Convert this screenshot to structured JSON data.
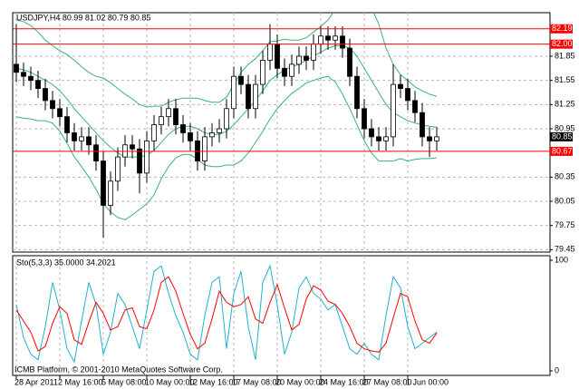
{
  "chart_data": [
    {
      "type": "candlestick",
      "title": "USDJPY,H4  80.99 81.02 80.79 80.85",
      "footer": "ICMB Platform, © 2001-2010 MetaQuotes Software Corp.",
      "categories": [
        "28 Apr 2011",
        null,
        null,
        null,
        null,
        null,
        "2 May 16:00",
        null,
        null,
        null,
        null,
        null,
        "5 May 08:00",
        null,
        null,
        null,
        null,
        null,
        "10 May 00:00",
        null,
        null,
        null,
        null,
        null,
        "12 May 16:00",
        null,
        null,
        null,
        null,
        null,
        "17 May 08:00",
        null,
        null,
        null,
        null,
        null,
        "20 May 00:00",
        null,
        null,
        null,
        null,
        null,
        "24 May 16:00",
        null,
        null,
        null,
        null,
        null,
        "27 May 08:00",
        null,
        null,
        null,
        null,
        null,
        "1 Jun 00:00",
        null,
        null,
        null,
        null
      ],
      "open": [
        81.75,
        81.65,
        81.6,
        81.55,
        81.45,
        81.3,
        81.2,
        81.1,
        80.9,
        80.8,
        80.85,
        80.75,
        80.55,
        80.0,
        80.3,
        80.6,
        80.75,
        80.7,
        80.4,
        80.8,
        81.0,
        81.1,
        81.2,
        81.0,
        80.9,
        80.8,
        80.55,
        80.85,
        80.9,
        80.95,
        81.2,
        81.6,
        81.5,
        81.2,
        81.5,
        81.8,
        82.0,
        81.7,
        81.6,
        81.75,
        81.85,
        81.8,
        82.0,
        82.1,
        82.05,
        82.1,
        81.95,
        81.6,
        81.2,
        80.95,
        80.85,
        80.8,
        80.85,
        81.5,
        81.45,
        81.3,
        81.15,
        80.85,
        80.8
      ],
      "high": [
        82.25,
        81.77,
        81.72,
        81.67,
        81.57,
        81.42,
        81.32,
        81.22,
        81.02,
        80.97,
        80.97,
        80.87,
        80.67,
        80.42,
        80.72,
        80.87,
        80.87,
        80.82,
        80.92,
        81.12,
        81.22,
        81.32,
        81.32,
        81.12,
        81.02,
        80.92,
        80.97,
        81.02,
        81.07,
        81.32,
        81.72,
        81.72,
        81.62,
        81.62,
        81.92,
        82.25,
        82.12,
        81.82,
        81.87,
        81.97,
        81.97,
        82.12,
        82.22,
        82.22,
        82.22,
        82.22,
        82.07,
        81.72,
        81.32,
        81.07,
        80.97,
        80.97,
        81.75,
        81.62,
        81.57,
        81.42,
        81.27,
        80.97,
        80.97
      ],
      "low": [
        81.53,
        81.48,
        81.43,
        81.33,
        81.18,
        81.08,
        80.98,
        80.78,
        80.68,
        80.68,
        80.63,
        80.43,
        79.6,
        79.88,
        80.18,
        80.48,
        80.58,
        80.15,
        80.28,
        80.68,
        80.88,
        80.98,
        80.88,
        80.78,
        80.68,
        80.43,
        80.43,
        80.73,
        80.78,
        80.83,
        81.08,
        81.38,
        81.08,
        81.08,
        81.38,
        81.68,
        81.58,
        81.48,
        81.48,
        81.63,
        81.68,
        81.68,
        81.88,
        81.93,
        81.93,
        81.83,
        81.48,
        81.08,
        80.83,
        80.73,
        80.68,
        80.68,
        80.73,
        81.33,
        81.18,
        81.03,
        80.73,
        80.6,
        80.68
      ],
      "close": [
        81.65,
        81.6,
        81.55,
        81.45,
        81.3,
        81.2,
        81.1,
        80.9,
        80.8,
        80.85,
        80.75,
        80.55,
        80.0,
        80.3,
        80.6,
        80.75,
        80.7,
        80.4,
        80.8,
        81.0,
        81.1,
        81.2,
        81.0,
        80.9,
        80.8,
        80.55,
        80.85,
        80.9,
        80.95,
        81.2,
        81.6,
        81.5,
        81.2,
        81.5,
        81.8,
        82.0,
        81.7,
        81.6,
        81.75,
        81.85,
        81.8,
        82.0,
        82.1,
        82.05,
        82.1,
        81.95,
        81.6,
        81.2,
        80.95,
        80.85,
        80.8,
        80.85,
        81.5,
        81.45,
        81.3,
        81.15,
        80.85,
        80.8,
        80.85
      ],
      "candle_color": "#000000",
      "bands": [
        {
          "color": "#3cb371",
          "values": [
            82.3,
            82.28,
            82.23,
            82.15,
            82.05,
            81.98,
            81.92,
            81.87,
            81.8,
            81.72,
            81.65,
            81.6,
            81.58,
            81.52,
            81.45,
            81.38,
            81.32,
            81.25,
            81.22,
            81.23,
            81.23,
            81.28,
            81.31,
            81.33,
            81.33,
            81.33,
            81.3,
            81.28,
            81.28,
            81.34,
            81.5,
            81.65,
            81.75,
            81.82,
            81.92,
            82.03,
            82.04,
            82.06,
            82.05,
            82.05,
            82.08,
            82.15,
            82.22,
            82.3,
            82.43,
            82.58,
            82.7,
            82.7,
            82.6,
            82.45,
            82.25,
            81.95,
            81.75,
            81.62,
            81.55,
            81.47,
            81.42,
            81.38,
            81.35
          ]
        },
        {
          "color": "#3cb371",
          "values": [
            81.7,
            81.68,
            81.65,
            81.6,
            81.55,
            81.5,
            81.42,
            81.32,
            81.2,
            81.1,
            81.0,
            80.9,
            80.8,
            80.72,
            80.65,
            80.6,
            80.6,
            80.6,
            80.62,
            80.68,
            80.78,
            80.88,
            80.95,
            80.98,
            80.98,
            80.95,
            80.9,
            80.88,
            80.88,
            80.92,
            81.0,
            81.1,
            81.2,
            81.3,
            81.42,
            81.55,
            81.62,
            81.68,
            81.72,
            81.75,
            81.8,
            81.85,
            81.9,
            81.95,
            81.98,
            81.98,
            81.95,
            81.85,
            81.7,
            81.55,
            81.4,
            81.25,
            81.15,
            81.1,
            81.05,
            81.02,
            81.0,
            80.98,
            80.97
          ]
        },
        {
          "color": "#3cb371",
          "values": [
            81.1,
            81.08,
            81.07,
            81.05,
            81.05,
            81.02,
            80.92,
            80.77,
            80.6,
            80.48,
            80.35,
            80.2,
            80.02,
            79.92,
            79.85,
            79.82,
            79.88,
            79.95,
            80.02,
            80.13,
            80.33,
            80.48,
            80.59,
            80.63,
            80.63,
            80.57,
            80.5,
            80.48,
            80.48,
            80.5,
            80.5,
            80.55,
            80.65,
            80.78,
            80.92,
            81.07,
            81.2,
            81.3,
            81.39,
            81.45,
            81.52,
            81.55,
            81.58,
            81.6,
            81.53,
            81.38,
            81.2,
            81.0,
            80.8,
            80.65,
            80.55,
            80.55,
            80.55,
            80.58,
            80.55,
            80.57,
            80.58,
            80.58,
            80.59
          ]
        }
      ],
      "levels": [
        82.19,
        {
          "value": 82,
          "label": "82.00"
        },
        80.67
      ],
      "level_color": "#ff0000",
      "current_price": 80.85,
      "ylim": [
        79.42,
        82.39
      ],
      "yticks": [
        79.45,
        79.75,
        80.05,
        80.35,
        80.95,
        81.25,
        81.55,
        81.85
      ],
      "grid": true
    },
    {
      "type": "line",
      "title": "Sto(5,3,3) 35.0000 34.2021",
      "series": [
        {
          "color": "#20b2cc",
          "values": [
            60,
            30,
            15,
            10,
            40,
            80,
            55,
            20,
            8,
            45,
            80,
            60,
            15,
            35,
            70,
            60,
            40,
            20,
            55,
            90,
            95,
            70,
            50,
            35,
            15,
            10,
            50,
            80,
            85,
            20,
            70,
            90,
            40,
            10,
            80,
            95,
            60,
            15,
            35,
            75,
            85,
            70,
            65,
            55,
            60,
            40,
            20,
            15,
            25,
            15,
            10,
            50,
            85,
            75,
            40,
            20,
            25,
            30,
            35
          ]
        },
        {
          "color": "#ff0000",
          "values": [
            55,
            45,
            35,
            18,
            22,
            43,
            58,
            52,
            28,
            24,
            44,
            62,
            52,
            37,
            40,
            55,
            57,
            40,
            38,
            55,
            80,
            85,
            72,
            52,
            33,
            20,
            25,
            47,
            72,
            62,
            58,
            60,
            67,
            47,
            43,
            62,
            78,
            57,
            37,
            42,
            65,
            77,
            73,
            63,
            60,
            52,
            40,
            25,
            20,
            18,
            17,
            25,
            48,
            70,
            67,
            45,
            28,
            25,
            34.2021
          ]
        }
      ],
      "ylim": [
        0,
        100
      ],
      "yticks": [
        0,
        100
      ]
    }
  ]
}
